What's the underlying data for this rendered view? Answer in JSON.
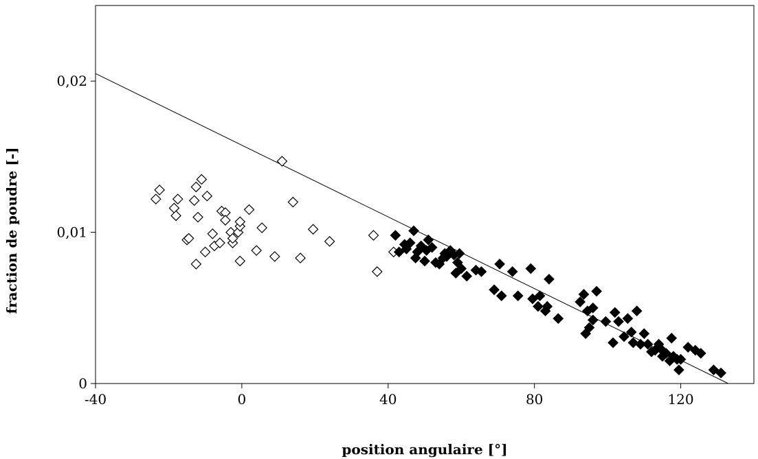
{
  "chart_data": {
    "type": "scatter",
    "title": "",
    "xlabel": "position angulaire [°]",
    "ylabel": "fraction de poudre [-]",
    "xlim": [
      -40,
      140
    ],
    "ylim": [
      0,
      0.025
    ],
    "x_ticks": [
      -40,
      0,
      40,
      80,
      120
    ],
    "x_tick_labels": [
      "-40",
      "0",
      "40",
      "80",
      "120"
    ],
    "y_ticks": [
      0,
      0.01,
      0.02
    ],
    "y_tick_labels": [
      "0",
      "0,01",
      "0,02"
    ],
    "grid": false,
    "legend": "none",
    "series": [
      {
        "marker": "diamond-open",
        "color": "#000000",
        "points": [
          [
            -23.5,
            0.0122
          ],
          [
            -22.5,
            0.0128
          ],
          [
            -18.5,
            0.0116
          ],
          [
            -18,
            0.0111
          ],
          [
            -17.5,
            0.0122
          ],
          [
            -15,
            0.0095
          ],
          [
            -14.5,
            0.0096
          ],
          [
            -13,
            0.0121
          ],
          [
            -12.5,
            0.0079
          ],
          [
            -12.5,
            0.013
          ],
          [
            -12,
            0.011
          ],
          [
            -11,
            0.0135
          ],
          [
            -10,
            0.0087
          ],
          [
            -9.5,
            0.0124
          ],
          [
            -8,
            0.0099
          ],
          [
            -7.5,
            0.0091
          ],
          [
            -6,
            0.0093
          ],
          [
            -5.5,
            0.0114
          ],
          [
            -4.5,
            0.0113
          ],
          [
            -4.5,
            0.0108
          ],
          [
            -3,
            0.01
          ],
          [
            -2.5,
            0.0093
          ],
          [
            -2.5,
            0.0096
          ],
          [
            -1,
            0.01
          ],
          [
            -0.5,
            0.0104
          ],
          [
            -0.5,
            0.0107
          ],
          [
            -0.5,
            0.0081
          ],
          [
            2,
            0.0115
          ],
          [
            4,
            0.0088
          ],
          [
            5.5,
            0.0103
          ],
          [
            9,
            0.0084
          ],
          [
            11,
            0.0147
          ],
          [
            14,
            0.012
          ],
          [
            16,
            0.0083
          ],
          [
            19.5,
            0.0102
          ],
          [
            24,
            0.0094
          ],
          [
            36,
            0.0098
          ],
          [
            37,
            0.0074
          ],
          [
            41.5,
            0.0087
          ]
        ]
      },
      {
        "marker": "diamond-filled",
        "color": "#000000",
        "points": [
          [
            42,
            0.0098
          ],
          [
            43,
            0.0087
          ],
          [
            44.5,
            0.0092
          ],
          [
            45,
            0.0089
          ],
          [
            46,
            0.0093
          ],
          [
            47,
            0.0101
          ],
          [
            47.5,
            0.0083
          ],
          [
            48,
            0.0087
          ],
          [
            49,
            0.0091
          ],
          [
            50,
            0.0081
          ],
          [
            50.5,
            0.0088
          ],
          [
            51,
            0.0095
          ],
          [
            52,
            0.009
          ],
          [
            53,
            0.008
          ],
          [
            54,
            0.0079
          ],
          [
            55,
            0.0083
          ],
          [
            55.5,
            0.0086
          ],
          [
            56,
            0.0084
          ],
          [
            57,
            0.0088
          ],
          [
            58,
            0.0085
          ],
          [
            58.5,
            0.0073
          ],
          [
            59,
            0.008
          ],
          [
            59.5,
            0.0086
          ],
          [
            60,
            0.0076
          ],
          [
            61.5,
            0.0071
          ],
          [
            64,
            0.0075
          ],
          [
            65.5,
            0.0074
          ],
          [
            69,
            0.0062
          ],
          [
            70.5,
            0.0079
          ],
          [
            71,
            0.0058
          ],
          [
            74,
            0.0074
          ],
          [
            75.5,
            0.0058
          ],
          [
            79,
            0.0076
          ],
          [
            79.5,
            0.0056
          ],
          [
            81,
            0.0051
          ],
          [
            81.5,
            0.0058
          ],
          [
            83,
            0.0048
          ],
          [
            83.5,
            0.0051
          ],
          [
            84,
            0.0069
          ],
          [
            86.5,
            0.0043
          ],
          [
            92.5,
            0.0054
          ],
          [
            93.5,
            0.0059
          ],
          [
            94,
            0.0033
          ],
          [
            94.5,
            0.0048
          ],
          [
            95,
            0.0037
          ],
          [
            96,
            0.0042
          ],
          [
            96,
            0.005
          ],
          [
            97,
            0.0061
          ],
          [
            99.5,
            0.0041
          ],
          [
            101.5,
            0.0027
          ],
          [
            102,
            0.0047
          ],
          [
            103,
            0.0041
          ],
          [
            104.5,
            0.0031
          ],
          [
            105.5,
            0.0043
          ],
          [
            106.5,
            0.0034
          ],
          [
            107,
            0.0027
          ],
          [
            108,
            0.0048
          ],
          [
            109,
            0.0026
          ],
          [
            110,
            0.0033
          ],
          [
            111,
            0.0026
          ],
          [
            112,
            0.0021
          ],
          [
            113,
            0.0022
          ],
          [
            114,
            0.0026
          ],
          [
            114.5,
            0.0023
          ],
          [
            115,
            0.0018
          ],
          [
            116,
            0.002
          ],
          [
            117,
            0.0015
          ],
          [
            117.5,
            0.003
          ],
          [
            118,
            0.0018
          ],
          [
            119,
            0.0016
          ],
          [
            119.5,
            0.0009
          ],
          [
            120,
            0.0016
          ],
          [
            122,
            0.0024
          ],
          [
            124,
            0.0022
          ],
          [
            125.5,
            0.002
          ],
          [
            129,
            0.0009
          ],
          [
            131,
            0.0007
          ]
        ]
      }
    ],
    "trendline": {
      "type": "linear",
      "x_range": [
        -40,
        133
      ],
      "y_at_x_start": 0.0205,
      "y_at_x_end": 0
    }
  }
}
